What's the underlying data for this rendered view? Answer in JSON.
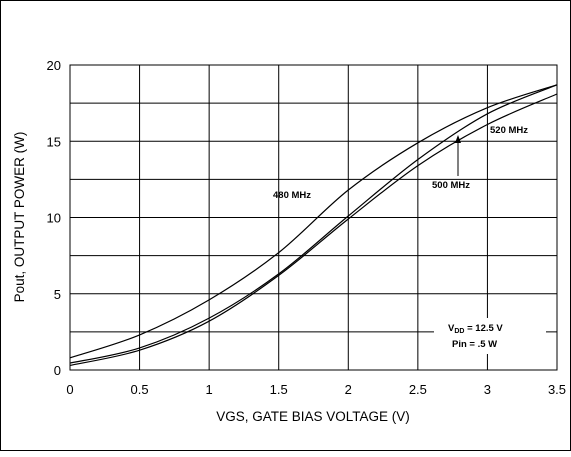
{
  "chart_data": {
    "type": "line",
    "xlabel": "VGS, GATE BIAS VOLTAGE (V)",
    "ylabel": "Pout, OUTPUT POWER (W)",
    "xlim": [
      0,
      3.5
    ],
    "ylim": [
      0,
      20
    ],
    "x_ticks": [
      "0",
      "0.5",
      "1",
      "1.5",
      "2",
      "2.5",
      "3",
      "3.5"
    ],
    "y_ticks": [
      "0",
      "5",
      "10",
      "15",
      "20"
    ],
    "grid": true,
    "series": [
      {
        "name": "480 MHz",
        "x": [
          0,
          0.5,
          1,
          1.5,
          2,
          2.5,
          3,
          3.5
        ],
        "values": [
          0.8,
          2.3,
          4.6,
          7.7,
          11.8,
          14.9,
          17.2,
          18.7
        ]
      },
      {
        "name": "500 MHz",
        "x": [
          0,
          0.5,
          1,
          1.5,
          2,
          2.5,
          3,
          3.5
        ],
        "values": [
          0.45,
          1.45,
          3.4,
          6.3,
          10.1,
          13.8,
          16.8,
          18.7
        ]
      },
      {
        "name": "520 MHz",
        "x": [
          0,
          0.5,
          1,
          1.5,
          2,
          2.5,
          3,
          3.5
        ],
        "values": [
          0.3,
          1.3,
          3.2,
          6.2,
          9.9,
          13.4,
          16.1,
          18.1
        ]
      }
    ],
    "annotations": {
      "vdd_label": "V",
      "vdd_subscript": "DD",
      "vdd_value": " = 12.5 V",
      "pin": "Pin = .5 W"
    }
  }
}
